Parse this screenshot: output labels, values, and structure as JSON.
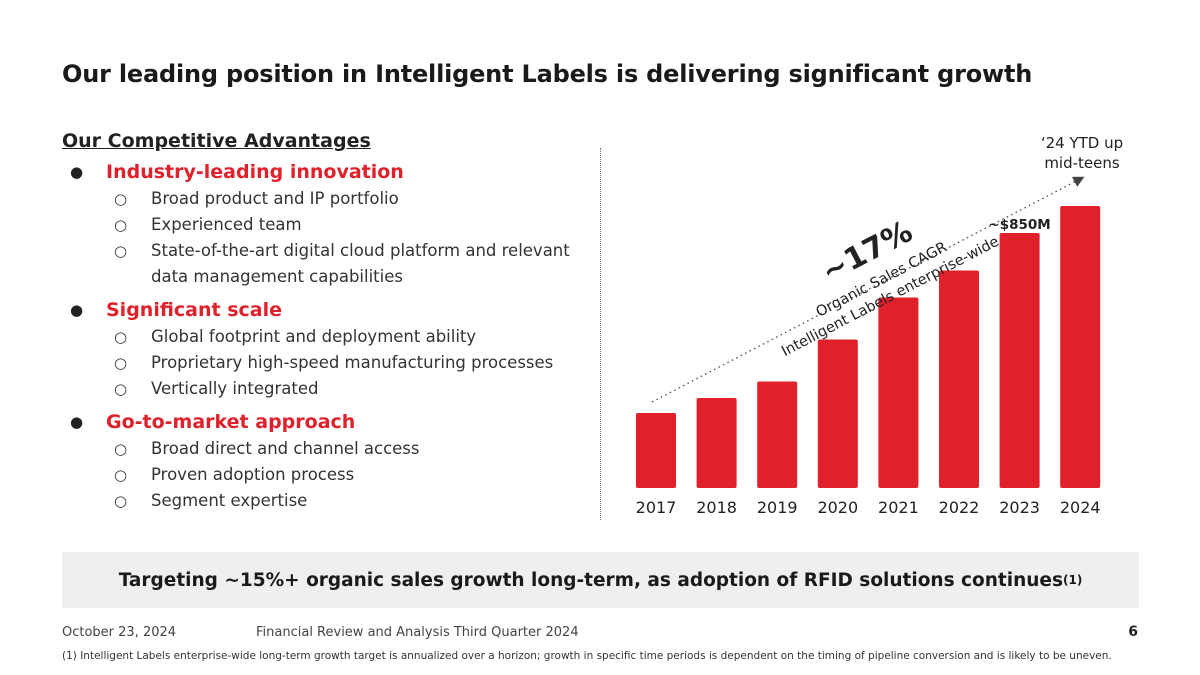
{
  "title": "Our leading position in Intelligent Labels is delivering significant growth",
  "advantages": {
    "heading": "Our Competitive Advantages",
    "groups": [
      {
        "head": "Industry-leading innovation",
        "items": [
          "Broad product and IP portfolio",
          "Experienced team",
          "State-of-the-art digital cloud platform and relevant data management capabilities"
        ]
      },
      {
        "head": "Significant scale",
        "items": [
          "Global footprint and deployment ability",
          "Proprietary high-speed manufacturing processes",
          "Vertically integrated"
        ]
      },
      {
        "head": "Go-to-market approach",
        "items": [
          "Broad direct and channel access",
          "Proven adoption process",
          "Segment expertise"
        ]
      }
    ]
  },
  "chart_data": {
    "type": "bar",
    "categories": [
      "2017",
      "2018",
      "2019",
      "2020",
      "2021",
      "2022",
      "2023",
      "2024"
    ],
    "values": [
      250,
      300,
      355,
      495,
      635,
      725,
      850,
      940
    ],
    "ylim": [
      0,
      1000
    ],
    "bar_color": "#e0202a",
    "annotations": {
      "cagr_value": "~17%",
      "cagr_line1": "Organic Sales CAGR",
      "cagr_line2": "Intelligent Labels enterprise-wide",
      "value_2023": "~$850M",
      "ytd_line1": "‘24 YTD up",
      "ytd_line2": "mid-teens"
    }
  },
  "banner": {
    "text": "Targeting ~15%+ organic sales growth long-term, as adoption of RFID solutions continues",
    "sup": "(1)"
  },
  "footer": {
    "date": "October 23, 2024",
    "doc": "Financial Review and Analysis Third Quarter 2024",
    "page": "6",
    "footnote": "(1) Intelligent Labels enterprise-wide long-term growth target is annualized over a horizon; growth in specific time periods is dependent on the timing of pipeline conversion and is likely to be uneven."
  },
  "colors": {
    "accent": "#e0202a",
    "banner_bg": "#efefef"
  }
}
